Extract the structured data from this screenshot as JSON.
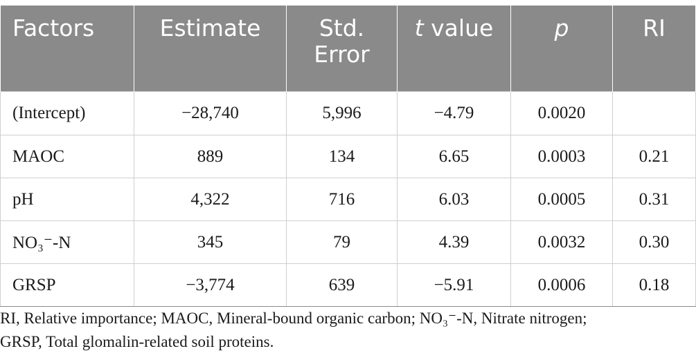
{
  "table": {
    "headers": [
      "Factors",
      "Estimate",
      "Std.\nError",
      "t value",
      "p",
      "RI"
    ],
    "header_t": "t",
    "header_t_rest": " value",
    "std_line1": "Std.",
    "std_line2": "Error",
    "rows": [
      [
        "(Intercept)",
        "−28,740",
        "5,996",
        "−4.79",
        "0.0020",
        ""
      ],
      [
        "MAOC",
        "889",
        "134",
        "6.65",
        "0.0003",
        "0.21"
      ],
      [
        "pH",
        "4,322",
        "716",
        "6.03",
        "0.0005",
        "0.31"
      ],
      [
        "NO₃⁻-N",
        "345",
        "79",
        "4.39",
        "0.0032",
        "0.30"
      ],
      [
        "GRSP",
        "−3,774",
        "639",
        "−5.91",
        "0.0006",
        "0.18"
      ]
    ]
  },
  "footnote": {
    "line1": "RI, Relative importance; MAOC, Mineral-bound organic carbon; NO₃⁻-N, Nitrate nitrogen;",
    "line2": "GRSP, Total glomalin-related soil proteins."
  },
  "colors": {
    "header_bg": "#8a8a8a",
    "header_text": "#ffffff",
    "grid": "#cfcfcf"
  }
}
